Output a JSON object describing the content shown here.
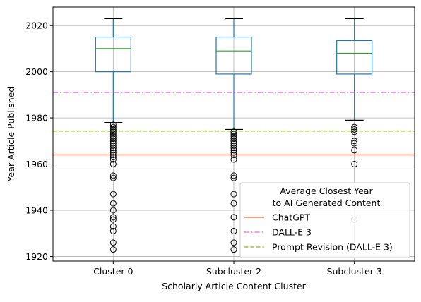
{
  "chart_data": {
    "type": "box",
    "xlabel": "Scholarly Article Content Cluster",
    "ylabel": "Year Article Published",
    "ylim": [
      1918,
      2028
    ],
    "yticks": [
      1920,
      1940,
      1960,
      1980,
      2000,
      2020
    ],
    "grid": true,
    "categories": [
      "Cluster 0",
      "Subcluster 2",
      "Subcluster 3"
    ],
    "boxes": [
      {
        "category": "Cluster 0",
        "whisker_low": 1978,
        "q1": 2000,
        "median": 2010,
        "q3": 2015,
        "whisker_high": 2023,
        "outliers": [
          1977,
          1976,
          1975,
          1974,
          1973,
          1972,
          1971,
          1970,
          1969,
          1968,
          1967,
          1966,
          1965,
          1964,
          1963,
          1962,
          1960,
          1955,
          1954,
          1947,
          1943,
          1940,
          1937,
          1936,
          1933,
          1931,
          1926,
          1923
        ]
      },
      {
        "category": "Subcluster 2",
        "whisker_low": 1975,
        "q1": 1999,
        "median": 2009,
        "q3": 2015,
        "whisker_high": 2023,
        "outliers": [
          1974,
          1973,
          1972,
          1971,
          1970,
          1969,
          1968,
          1967,
          1966,
          1965,
          1964,
          1962,
          1955,
          1954,
          1947,
          1943,
          1937,
          1931,
          1926,
          1923
        ]
      },
      {
        "category": "Subcluster 3",
        "whisker_low": 1979,
        "q1": 1999,
        "median": 2008,
        "q3": 2013.5,
        "whisker_high": 2023,
        "outliers": [
          1976,
          1975,
          1974,
          1970,
          1969,
          1966,
          1960,
          1936
        ]
      }
    ],
    "reference_lines": [
      {
        "name": "ChatGPT",
        "value": 1964,
        "color": "#ff7f50",
        "style": "solid"
      },
      {
        "name": "DALL-E 3",
        "value": 1991,
        "color": "#ee82ee",
        "style": "dashdot"
      },
      {
        "name": "Prompt Revision (DALL-E 3)",
        "value": 1974.3,
        "color": "#9acd32",
        "style": "dashed"
      }
    ],
    "legend": {
      "title_line1": "Average Closest Year",
      "title_line2": "to AI Generated Content",
      "placement": "lower-right"
    },
    "box_color": "#1f77b4",
    "median_color": "#2ca02c"
  }
}
